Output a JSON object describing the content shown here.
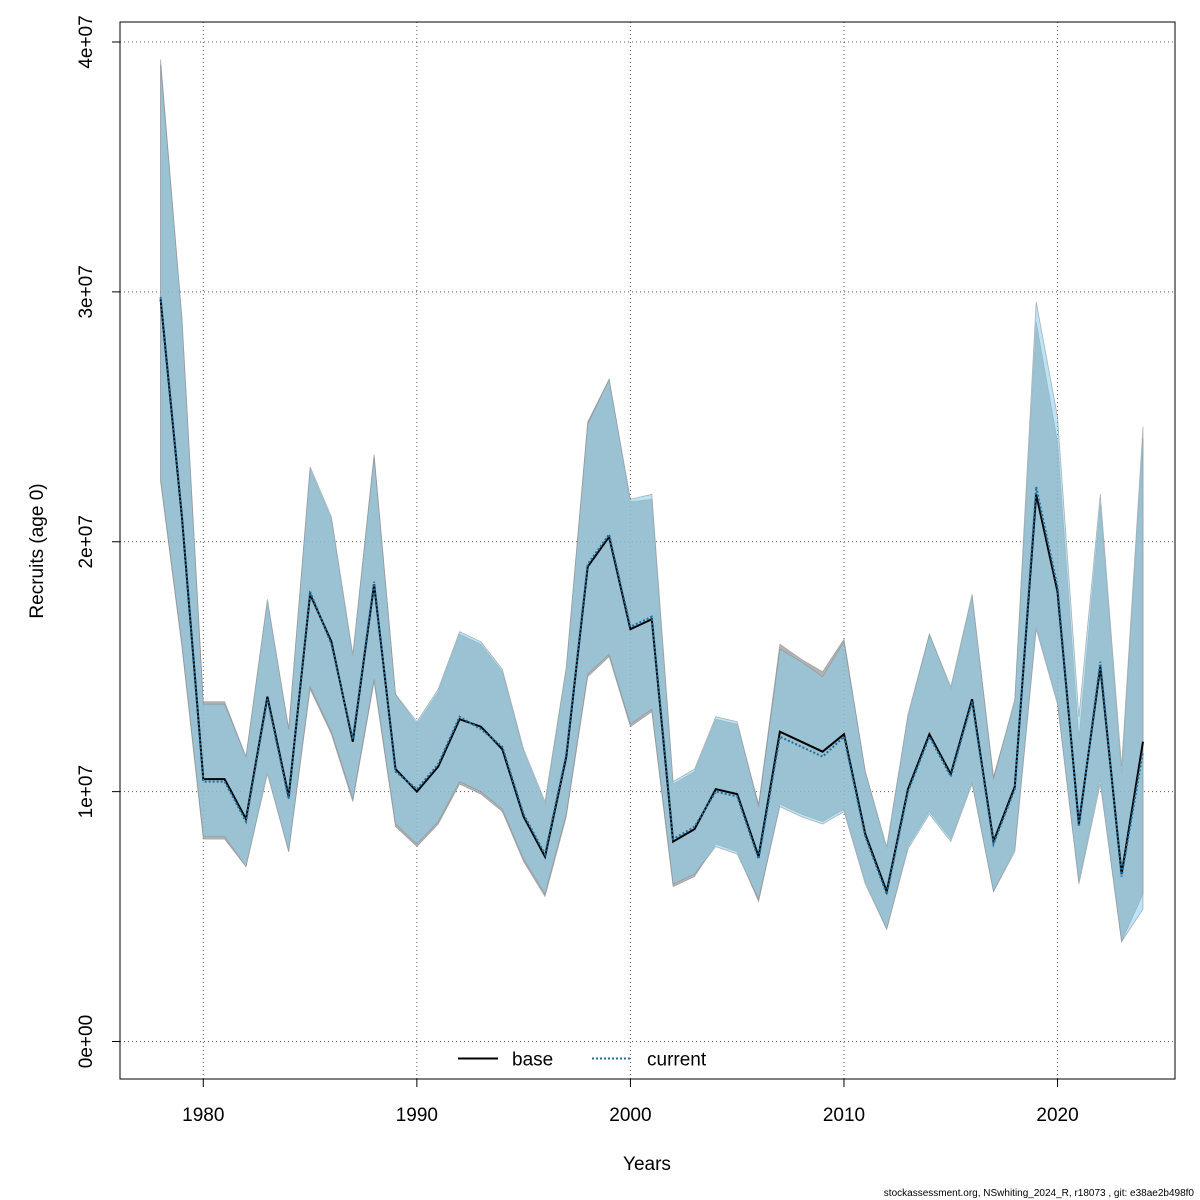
{
  "chart_data": {
    "type": "line",
    "xlabel": "Years",
    "ylabel": "Recruits (age 0)",
    "xlim": [
      1976.1,
      2025.5
    ],
    "ylim": [
      -1500000,
      40800000
    ],
    "x_ticks": [
      1980,
      1990,
      2000,
      2010,
      2020
    ],
    "x_tick_labels": [
      "1980",
      "1990",
      "2000",
      "2010",
      "2020"
    ],
    "y_ticks": [
      0,
      10000000,
      20000000,
      30000000,
      40000000
    ],
    "y_tick_labels": [
      "0e+00",
      "1e+07",
      "2e+07",
      "3e+07",
      "4e+07"
    ],
    "grid": true,
    "legend_position": "bottom-center",
    "footnote": "stockassessment.org, NSwhiting_2024_R, r18073 , git: e38ae2b498f0",
    "colors": {
      "base_line": "#000000",
      "current_line": "#1f6f9f",
      "base_band": "#999999",
      "current_band": "#87ceeb"
    },
    "x": [
      1978,
      1979,
      1980,
      1981,
      1982,
      1983,
      1984,
      1985,
      1986,
      1987,
      1988,
      1989,
      1990,
      1991,
      1992,
      1993,
      1994,
      1995,
      1996,
      1997,
      1998,
      1999,
      2000,
      2001,
      2002,
      2003,
      2004,
      2005,
      2006,
      2007,
      2008,
      2009,
      2010,
      2011,
      2012,
      2013,
      2014,
      2015,
      2016,
      2017,
      2018,
      2019,
      2020,
      2021,
      2022,
      2023,
      2024
    ],
    "series": [
      {
        "name": "base",
        "style": "solid",
        "values": [
          29700000,
          21000000,
          10500000,
          10500000,
          8900000,
          13800000,
          9800000,
          17900000,
          16000000,
          12000000,
          18300000,
          10900000,
          10000000,
          11000000,
          12900000,
          12600000,
          11700000,
          9000000,
          7400000,
          11400000,
          19000000,
          20200000,
          16500000,
          16900000,
          8000000,
          8500000,
          10100000,
          9900000,
          7400000,
          12400000,
          12000000,
          11600000,
          12300000,
          8300000,
          6000000,
          10100000,
          12300000,
          10700000,
          13700000,
          8000000,
          10200000,
          21900000,
          18000000,
          8700000,
          15000000,
          6700000,
          12000000
        ],
        "lower": [
          22400000,
          15800000,
          8100000,
          8100000,
          7000000,
          10800000,
          7600000,
          14100000,
          12300000,
          9600000,
          14400000,
          8600000,
          7800000,
          8700000,
          10300000,
          9900000,
          9200000,
          7200000,
          5800000,
          9000000,
          14600000,
          15400000,
          12600000,
          13200000,
          6200000,
          6600000,
          7900000,
          7600000,
          5600000,
          9500000,
          9100000,
          8800000,
          9300000,
          6400000,
          4500000,
          7800000,
          9200000,
          8100000,
          10400000,
          6000000,
          7700000,
          16600000,
          13600000,
          6400000,
          10500000,
          4000000,
          5900000
        ],
        "upper": [
          39300000,
          28900000,
          13600000,
          13600000,
          11400000,
          17600000,
          12500000,
          22900000,
          20900000,
          15400000,
          23500000,
          13900000,
          12700000,
          14000000,
          16300000,
          15900000,
          14800000,
          11600000,
          9500000,
          14900000,
          24800000,
          26500000,
          21600000,
          21700000,
          10300000,
          10800000,
          12900000,
          12700000,
          9500000,
          15900000,
          15300000,
          14800000,
          16100000,
          10800000,
          7700000,
          13000000,
          16300000,
          14100000,
          17800000,
          10600000,
          13600000,
          28800000,
          24000000,
          12100000,
          21500000,
          10700000,
          24100000
        ]
      },
      {
        "name": "current",
        "style": "dotted",
        "values": [
          29800000,
          21100000,
          10400000,
          10400000,
          8800000,
          13700000,
          9700000,
          18000000,
          15900000,
          12100000,
          18400000,
          10800000,
          10100000,
          11100000,
          13000000,
          12500000,
          11800000,
          9100000,
          7500000,
          11500000,
          19100000,
          20300000,
          16600000,
          17000000,
          8100000,
          8600000,
          10000000,
          9800000,
          7300000,
          12200000,
          11800000,
          11400000,
          12200000,
          8200000,
          5900000,
          10000000,
          12200000,
          10600000,
          13600000,
          7900000,
          10100000,
          22200000,
          18200000,
          8600000,
          15200000,
          6600000,
          11600000
        ],
        "lower": [
          22500000,
          15900000,
          8200000,
          8200000,
          7000000,
          10700000,
          7600000,
          14200000,
          12400000,
          9700000,
          14500000,
          8700000,
          7900000,
          8800000,
          10400000,
          10000000,
          9300000,
          7300000,
          5900000,
          9100000,
          14700000,
          15500000,
          12700000,
          13300000,
          6300000,
          6700000,
          7800000,
          7500000,
          5700000,
          9400000,
          9000000,
          8700000,
          9200000,
          6300000,
          4500000,
          7700000,
          9100000,
          8000000,
          10300000,
          6000000,
          7600000,
          16500000,
          13500000,
          6300000,
          10300000,
          4000000,
          5300000
        ],
        "upper": [
          39100000,
          29000000,
          13500000,
          13500000,
          11400000,
          17700000,
          12500000,
          23000000,
          21000000,
          15500000,
          23400000,
          13900000,
          12800000,
          14100000,
          16400000,
          16000000,
          14900000,
          11700000,
          9600000,
          15000000,
          24700000,
          26500000,
          21700000,
          21900000,
          10400000,
          10900000,
          13000000,
          12800000,
          9400000,
          15700000,
          15200000,
          14600000,
          16000000,
          10800000,
          7800000,
          13100000,
          16300000,
          14200000,
          17900000,
          10500000,
          13700000,
          29600000,
          25000000,
          13000000,
          21900000,
          11000000,
          24600000
        ]
      }
    ]
  }
}
